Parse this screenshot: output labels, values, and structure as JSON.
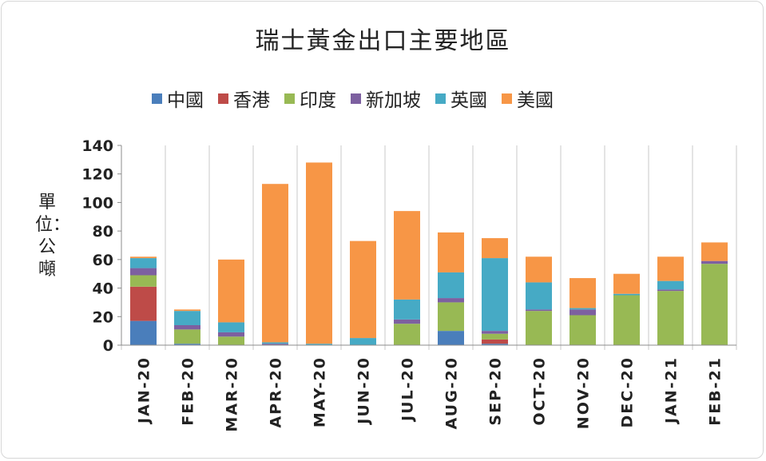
{
  "chart_data": {
    "type": "bar",
    "stacked": true,
    "title": "瑞士黃金出口主要地區",
    "ylabel": "單位：公噸",
    "ylim": [
      0,
      140
    ],
    "yticks": [
      0,
      20,
      40,
      60,
      80,
      100,
      120,
      140
    ],
    "grid": "vertical",
    "legend_position": "top",
    "categories": [
      "JAN-20",
      "FEB-20",
      "MAR-20",
      "APR-20",
      "MAY-20",
      "JUN-20",
      "JUL-20",
      "AUG-20",
      "SEP-20",
      "OCT-20",
      "NOV-20",
      "DEC-20",
      "JAN-21",
      "FEB-21"
    ],
    "series": [
      {
        "name": "中國",
        "color": "#4a7ebb",
        "values": [
          17,
          1,
          0,
          0,
          0,
          0,
          0,
          10,
          1,
          0,
          0,
          0,
          0,
          0
        ]
      },
      {
        "name": "香港",
        "color": "#be4b48",
        "values": [
          24,
          0,
          0,
          0,
          0,
          0,
          0,
          0,
          3,
          0,
          0,
          0,
          0,
          0
        ]
      },
      {
        "name": "印度",
        "color": "#98b954",
        "values": [
          8,
          10,
          6,
          0,
          0,
          0,
          15,
          20,
          4,
          24,
          21,
          35,
          38,
          57
        ]
      },
      {
        "name": "新加坡",
        "color": "#7d60a0",
        "values": [
          5,
          3,
          3,
          1,
          0,
          0,
          3,
          3,
          2,
          1,
          4,
          0,
          1,
          2
        ]
      },
      {
        "name": "英國",
        "color": "#46aac5",
        "values": [
          7,
          10,
          7,
          1,
          1,
          5,
          14,
          18,
          51,
          19,
          1,
          1,
          6,
          0
        ]
      },
      {
        "name": "美國",
        "color": "#f79646",
        "values": [
          1,
          1,
          44,
          111,
          127,
          68,
          62,
          28,
          14,
          18,
          21,
          14,
          17,
          13
        ]
      }
    ]
  }
}
